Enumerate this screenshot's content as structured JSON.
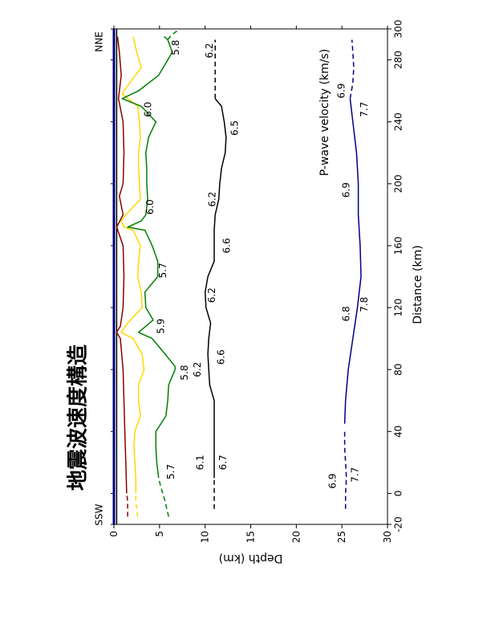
{
  "chart_data": {
    "type": "line",
    "title": "地震波速度構造",
    "xlabel": "Distance (km)",
    "ylabel": "Depth (km)",
    "legend_title": "P-wave velocity (km/s)",
    "xlim": [
      -20,
      300
    ],
    "ylim": [
      0,
      30
    ],
    "x_ticks": [
      -20,
      0,
      40,
      80,
      120,
      160,
      200,
      240,
      280,
      300
    ],
    "y_ticks": [
      0,
      5,
      10,
      15,
      20,
      25,
      30
    ],
    "direction_left": "SSW",
    "direction_right": "NNE",
    "series": [
      {
        "color": "#000080",
        "dashed": false,
        "x": [
          -20,
          0,
          40,
          80,
          120,
          160,
          200,
          240,
          280,
          300
        ],
        "y": [
          0,
          0,
          0,
          0,
          0,
          0,
          0,
          0,
          0,
          0
        ]
      },
      {
        "color": "#000000",
        "dashed": false,
        "x": [
          -20,
          0,
          40,
          80,
          100,
          120,
          140,
          160,
          172,
          180,
          200,
          220,
          240,
          255,
          270,
          285,
          300
        ],
        "y": [
          0.3,
          0.3,
          0.3,
          0.3,
          0.3,
          0.3,
          0.3,
          0.3,
          0.3,
          0.3,
          0.3,
          0.3,
          0.3,
          0.3,
          0.3,
          0.3,
          0.3
        ]
      },
      {
        "color": "#8B0000",
        "dashed": false,
        "x": [
          0,
          20,
          40,
          60,
          80,
          100,
          104,
          108,
          120,
          140,
          160,
          172,
          180,
          192,
          200,
          220,
          240,
          255,
          270,
          285,
          295
        ],
        "y": [
          1.4,
          1.3,
          1.2,
          1.1,
          1.0,
          0.7,
          0.3,
          0.7,
          1.0,
          1.1,
          1.0,
          0.3,
          1.0,
          0.6,
          1.0,
          1.1,
          1.0,
          0.5,
          0.8,
          0.6,
          0.4
        ]
      },
      {
        "color": "#FFD700",
        "dashed": false,
        "x": [
          0,
          10,
          20,
          30,
          40,
          50,
          60,
          70,
          80,
          90,
          100,
          104,
          110,
          120,
          130,
          140,
          150,
          160,
          170,
          172,
          176,
          180,
          190,
          200,
          210,
          220,
          230,
          240,
          250,
          258,
          265,
          275,
          285,
          295
        ],
        "y": [
          2.4,
          2.4,
          2.3,
          2.2,
          2.3,
          2.9,
          2.7,
          2.7,
          3.3,
          3.1,
          2.1,
          0.8,
          1.5,
          3.1,
          3.0,
          2.6,
          2.7,
          2.9,
          2.1,
          1.1,
          0.8,
          1.3,
          2.9,
          2.8,
          2.7,
          2.7,
          2.9,
          2.8,
          2.6,
          0.9,
          1.7,
          3.0,
          2.5,
          2.1
        ]
      },
      {
        "color": "#008000",
        "dashed": false,
        "x": [
          10,
          20,
          30,
          40,
          50,
          60,
          70,
          80,
          82,
          90,
          100,
          104,
          108,
          112,
          120,
          130,
          140,
          150,
          160,
          170,
          172,
          176,
          180,
          190,
          200,
          210,
          220,
          230,
          240,
          250,
          255,
          260,
          270,
          280,
          285,
          293,
          295
        ],
        "y": [
          4.9,
          4.7,
          4.6,
          4.6,
          5.7,
          5.9,
          6.0,
          6.7,
          6.7,
          5.6,
          4.2,
          2.7,
          3.5,
          4.3,
          3.5,
          3.4,
          4.8,
          4.8,
          4.2,
          3.4,
          1.5,
          3.0,
          3.5,
          3.7,
          3.6,
          3.6,
          3.5,
          3.8,
          4.6,
          3.0,
          0.9,
          2.7,
          4.9,
          5.9,
          6.4,
          5.9,
          5.5
        ]
      },
      {
        "color": "#000000",
        "dashed": false,
        "x": [
          10,
          20,
          30,
          40,
          60,
          70,
          80,
          90,
          100,
          110,
          120,
          130,
          140,
          150,
          160,
          170,
          180,
          190,
          200,
          210,
          220,
          230,
          240,
          250,
          255
        ],
        "y": [
          11.0,
          11.0,
          11.0,
          11.0,
          11.0,
          10.5,
          10.4,
          10.3,
          10.4,
          10.6,
          10.1,
          10.0,
          10.3,
          11.0,
          11.0,
          11.0,
          11.1,
          11.5,
          11.6,
          11.8,
          12.2,
          12.3,
          12.1,
          11.8,
          11.1
        ]
      },
      {
        "color": "#000080",
        "dashed": false,
        "x": [
          45,
          60,
          80,
          100,
          120,
          140,
          160,
          180,
          200,
          220,
          240,
          255
        ],
        "y": [
          25.3,
          25.4,
          25.7,
          26.2,
          26.7,
          27.1,
          27.0,
          26.8,
          26.8,
          26.6,
          26.2,
          25.9
        ]
      }
    ],
    "dashed_series": [
      {
        "color": "#8B0000",
        "x": [
          -15,
          -10,
          -5,
          0
        ],
        "y": [
          1.5,
          1.5,
          1.5,
          1.4
        ]
      },
      {
        "color": "#FFD700",
        "x": [
          -15,
          -10,
          -5,
          0
        ],
        "y": [
          2.6,
          2.5,
          2.4,
          2.4
        ]
      },
      {
        "color": "#008000",
        "x": [
          -15,
          -5,
          5,
          10
        ],
        "y": [
          6.0,
          5.6,
          5.1,
          4.9
        ]
      },
      {
        "color": "#008000",
        "x": [
          293,
          296,
          299
        ],
        "y": [
          5.9,
          6.3,
          7.0
        ]
      },
      {
        "color": "#000000",
        "x": [
          -10,
          0,
          10
        ],
        "y": [
          11.0,
          11.0,
          11.0
        ]
      },
      {
        "color": "#000000",
        "x": [
          255,
          265,
          275,
          285,
          293
        ],
        "y": [
          11.1,
          11.1,
          11.1,
          11.1,
          11.1
        ]
      },
      {
        "color": "#000080",
        "x": [
          -10,
          0,
          10,
          20,
          30,
          40
        ],
        "y": [
          25.4,
          25.4,
          25.5,
          25.4,
          25.3,
          25.3
        ]
      },
      {
        "color": "#000080",
        "x": [
          255,
          265,
          275,
          285,
          293
        ],
        "y": [
          25.9,
          26.2,
          26.3,
          26.2,
          26.1
        ]
      }
    ],
    "velocity_labels": [
      {
        "text": "5.7",
        "x": 14,
        "y": 6.3
      },
      {
        "text": "5.8",
        "x": 78,
        "y": 7.8
      },
      {
        "text": "5.9",
        "x": 108,
        "y": 5.2
      },
      {
        "text": "5.7",
        "x": 144,
        "y": 5.4
      },
      {
        "text": "6.0",
        "x": 185,
        "y": 4.0
      },
      {
        "text": "6.0",
        "x": 248,
        "y": 3.8
      },
      {
        "text": "5.8",
        "x": 288,
        "y": 6.8
      },
      {
        "text": "6.1",
        "x": 20,
        "y": 9.5
      },
      {
        "text": "6.7",
        "x": 20,
        "y": 12.0
      },
      {
        "text": "6.2",
        "x": 80,
        "y": 9.2
      },
      {
        "text": "6.6",
        "x": 88,
        "y": 11.8
      },
      {
        "text": "6.2",
        "x": 128,
        "y": 10.8
      },
      {
        "text": "6.6",
        "x": 160,
        "y": 12.4
      },
      {
        "text": "6.2",
        "x": 190,
        "y": 10.8
      },
      {
        "text": "6.5",
        "x": 236,
        "y": 13.3
      },
      {
        "text": "6.2",
        "x": 286,
        "y": 10.5
      },
      {
        "text": "6.9",
        "x": 8,
        "y": 24.0
      },
      {
        "text": "7.7",
        "x": 12,
        "y": 26.5
      },
      {
        "text": "6.8",
        "x": 116,
        "y": 25.5
      },
      {
        "text": "7.8",
        "x": 122,
        "y": 27.5
      },
      {
        "text": "6.9",
        "x": 196,
        "y": 25.5
      },
      {
        "text": "7.7",
        "x": 248,
        "y": 27.5
      },
      {
        "text": "6.9",
        "x": 260,
        "y": 25.0
      }
    ]
  }
}
